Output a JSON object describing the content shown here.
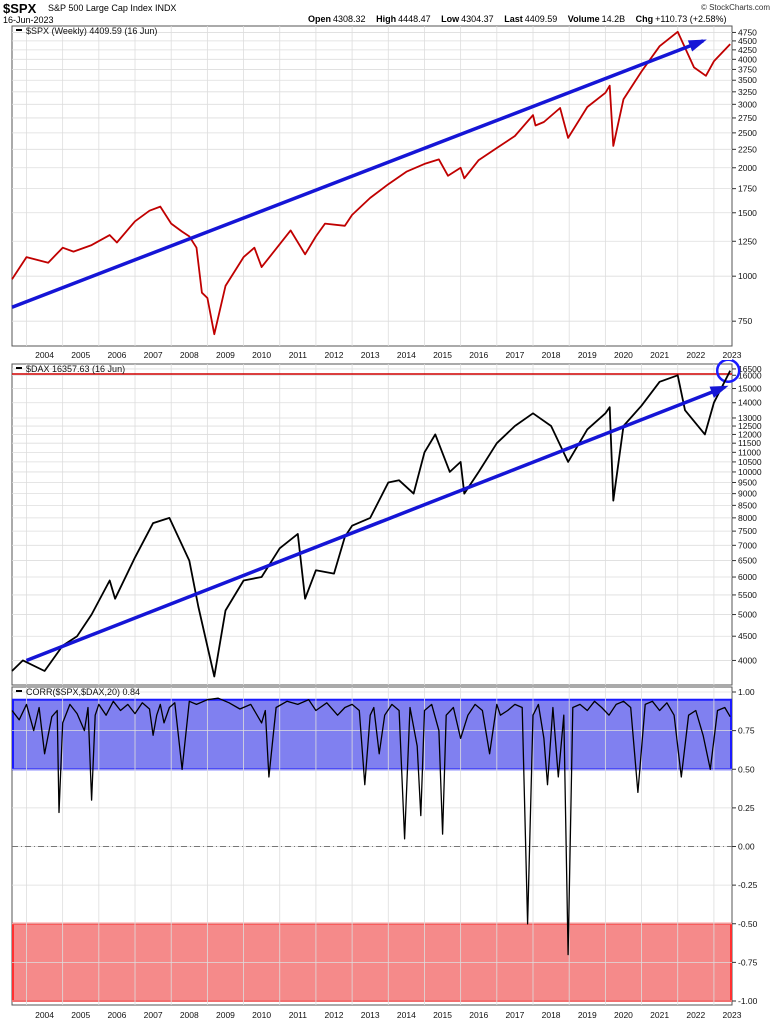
{
  "header": {
    "symbol": "$SPX",
    "name": "S&P 500 Large Cap Index",
    "exchange": "INDX",
    "date": "16-Jun-2023",
    "credit": "© StockCharts.com",
    "open_label": "Open",
    "open": "4308.32",
    "high_label": "High",
    "high": "4448.47",
    "low_label": "Low",
    "low": "4304.37",
    "last_label": "Last",
    "last": "4409.59",
    "volume_label": "Volume",
    "volume": "14.2B",
    "chg_label": "Chg",
    "chg": "+110.73 (+2.58%)"
  },
  "colors": {
    "spx_line": "#c00000",
    "dax_line": "#000000",
    "trend": "#1515d6",
    "corr_band_high": "#8080f0",
    "corr_band_low": "#f58a8a",
    "grid": "#dddddd",
    "highlight_line": "#d00000"
  },
  "chart_data": [
    {
      "type": "line",
      "legend": "$SPX (Weekly) 4409.59 (16 Jun)",
      "scale": "log",
      "x_labels": [
        "2004",
        "2005",
        "2006",
        "2007",
        "2008",
        "2009",
        "2010",
        "2011",
        "2012",
        "2013",
        "2014",
        "2015",
        "2016",
        "2017",
        "2018",
        "2019",
        "2020",
        "2021",
        "2022",
        "2023"
      ],
      "y_ticks": [
        750,
        1000,
        1250,
        1500,
        1750,
        2000,
        2250,
        2500,
        2750,
        3000,
        3250,
        3500,
        3750,
        4000,
        4250,
        4500,
        4750
      ],
      "ylim": [
        640,
        4950
      ],
      "series": [
        {
          "x": [
            2003.6,
            2004.0,
            2004.6,
            2005.0,
            2005.3,
            2005.8,
            2006.3,
            2006.5,
            2007.0,
            2007.4,
            2007.7,
            2008.0,
            2008.3,
            2008.5,
            2008.7,
            2008.85,
            2009.0,
            2009.19,
            2009.5,
            2010.0,
            2010.3,
            2010.5,
            2011.3,
            2011.7,
            2012.0,
            2012.25,
            2012.8,
            2013.0,
            2013.5,
            2014.0,
            2014.5,
            2015.0,
            2015.4,
            2015.65,
            2016.0,
            2016.1,
            2016.5,
            2017.0,
            2017.5,
            2018.0,
            2018.07,
            2018.3,
            2018.75,
            2018.97,
            2019.5,
            2020.0,
            2020.12,
            2020.22,
            2020.5,
            2021.0,
            2021.5,
            2022.0,
            2022.45,
            2022.78,
            2023.0,
            2023.45
          ],
          "y": [
            980,
            1130,
            1090,
            1200,
            1170,
            1220,
            1300,
            1240,
            1420,
            1520,
            1560,
            1400,
            1330,
            1290,
            1200,
            900,
            870,
            690,
            940,
            1130,
            1200,
            1060,
            1340,
            1150,
            1290,
            1400,
            1380,
            1480,
            1650,
            1800,
            1950,
            2050,
            2110,
            1900,
            2000,
            1870,
            2100,
            2270,
            2450,
            2800,
            2620,
            2680,
            2930,
            2420,
            2950,
            3230,
            3380,
            2300,
            3100,
            3700,
            4350,
            4770,
            3800,
            3600,
            3950,
            4409.59
          ]
        }
      ],
      "trendline": {
        "x": [
          2003.6,
          2022.7
        ],
        "y": [
          820,
          4500
        ]
      }
    },
    {
      "type": "line",
      "legend": "$DAX 16357.63 (16 Jun)",
      "scale": "log",
      "y_ticks": [
        4000,
        4500,
        5000,
        5500,
        6000,
        6500,
        7000,
        7500,
        8000,
        8500,
        9000,
        9500,
        10000,
        10500,
        11000,
        11500,
        12000,
        12500,
        13000,
        14000,
        15000,
        16000,
        16500
      ],
      "ylim": [
        3550,
        16900
      ],
      "highlight_level": 16100,
      "series": [
        {
          "x": [
            2003.6,
            2003.9,
            2004.5,
            2005.0,
            2005.4,
            2005.8,
            2006.3,
            2006.45,
            2007.0,
            2007.5,
            2007.95,
            2008.5,
            2008.75,
            2009.19,
            2009.5,
            2010.0,
            2010.5,
            2011.0,
            2011.5,
            2011.7,
            2012.0,
            2012.5,
            2012.8,
            2013.0,
            2013.5,
            2014.0,
            2014.3,
            2014.7,
            2015.0,
            2015.3,
            2015.7,
            2016.0,
            2016.1,
            2016.5,
            2017.0,
            2017.5,
            2018.0,
            2018.5,
            2018.97,
            2019.5,
            2020.0,
            2020.12,
            2020.22,
            2020.5,
            2021.0,
            2021.5,
            2022.0,
            2022.2,
            2022.75,
            2023.0,
            2023.45
          ],
          "y": [
            3800,
            4000,
            3800,
            4300,
            4500,
            5000,
            5900,
            5400,
            6600,
            7800,
            8000,
            6500,
            5200,
            3700,
            5100,
            5900,
            6000,
            6900,
            7400,
            5400,
            6200,
            6100,
            7300,
            7700,
            8000,
            9500,
            9600,
            9000,
            11000,
            12000,
            10000,
            10500,
            9000,
            10000,
            11500,
            12500,
            13300,
            12500,
            10500,
            12300,
            13300,
            13700,
            8700,
            12500,
            13800,
            15500,
            16000,
            13500,
            12000,
            14000,
            16357.63
          ]
        }
      ],
      "trendline": {
        "x": [
          2004.0,
          2023.3
        ],
        "y": [
          4000,
          15100
        ]
      }
    },
    {
      "type": "line",
      "legend": "CORR($SPX,$DAX,20) 0.84",
      "y_ticks": [
        1.0,
        0.75,
        0.5,
        0.25,
        0.0,
        -0.25,
        -0.5,
        -0.75,
        -1.0
      ],
      "ylim": [
        -1.0,
        1.0
      ],
      "bands": [
        {
          "from": 0.5,
          "to": 0.95,
          "color": "blue"
        },
        {
          "from": -1.0,
          "to": -0.5,
          "color": "red"
        }
      ],
      "series": [
        {
          "x": [
            2003.6,
            2003.8,
            2004.0,
            2004.2,
            2004.35,
            2004.5,
            2004.7,
            2004.85,
            2004.9,
            2005.0,
            2005.2,
            2005.4,
            2005.6,
            2005.7,
            2005.8,
            2005.9,
            2006.0,
            2006.2,
            2006.4,
            2006.6,
            2006.8,
            2007.0,
            2007.2,
            2007.4,
            2007.5,
            2007.6,
            2007.7,
            2007.8,
            2007.95,
            2008.1,
            2008.3,
            2008.5,
            2008.7,
            2009.0,
            2009.3,
            2009.6,
            2009.9,
            2010.2,
            2010.5,
            2010.6,
            2010.7,
            2010.9,
            2011.2,
            2011.5,
            2011.8,
            2012.0,
            2012.3,
            2012.6,
            2012.8,
            2013.0,
            2013.2,
            2013.35,
            2013.5,
            2013.6,
            2013.75,
            2013.9,
            2014.1,
            2014.3,
            2014.45,
            2014.6,
            2014.8,
            2014.9,
            2015.0,
            2015.2,
            2015.4,
            2015.5,
            2015.6,
            2015.8,
            2016.0,
            2016.2,
            2016.4,
            2016.6,
            2016.8,
            2017.0,
            2017.1,
            2017.3,
            2017.5,
            2017.7,
            2017.85,
            2018.0,
            2018.15,
            2018.3,
            2018.4,
            2018.55,
            2018.7,
            2018.85,
            2018.97,
            2019.1,
            2019.3,
            2019.5,
            2019.7,
            2019.9,
            2020.1,
            2020.3,
            2020.5,
            2020.7,
            2020.9,
            2021.1,
            2021.3,
            2021.5,
            2021.7,
            2021.9,
            2022.1,
            2022.3,
            2022.5,
            2022.7,
            2022.9,
            2023.1,
            2023.3,
            2023.45
          ],
          "y": [
            0.88,
            0.82,
            0.92,
            0.75,
            0.9,
            0.6,
            0.84,
            0.88,
            0.22,
            0.8,
            0.92,
            0.86,
            0.75,
            0.9,
            0.3,
            0.85,
            0.92,
            0.85,
            0.94,
            0.88,
            0.92,
            0.86,
            0.93,
            0.89,
            0.72,
            0.85,
            0.92,
            0.8,
            0.9,
            0.93,
            0.5,
            0.94,
            0.92,
            0.95,
            0.96,
            0.93,
            0.89,
            0.92,
            0.8,
            0.88,
            0.45,
            0.9,
            0.94,
            0.92,
            0.95,
            0.88,
            0.93,
            0.85,
            0.9,
            0.92,
            0.88,
            0.4,
            0.85,
            0.9,
            0.6,
            0.85,
            0.92,
            0.88,
            0.05,
            0.9,
            0.65,
            0.2,
            0.88,
            0.92,
            0.75,
            0.08,
            0.85,
            0.9,
            0.7,
            0.85,
            0.92,
            0.88,
            0.6,
            0.92,
            0.85,
            0.88,
            0.92,
            0.9,
            -0.5,
            0.85,
            0.92,
            0.7,
            0.4,
            0.9,
            0.45,
            0.85,
            -0.7,
            0.9,
            0.92,
            0.88,
            0.94,
            0.9,
            0.85,
            0.92,
            0.94,
            0.9,
            0.35,
            0.92,
            0.94,
            0.88,
            0.93,
            0.85,
            0.45,
            0.85,
            0.88,
            0.72,
            0.5,
            0.88,
            0.9,
            0.84
          ]
        }
      ]
    }
  ]
}
